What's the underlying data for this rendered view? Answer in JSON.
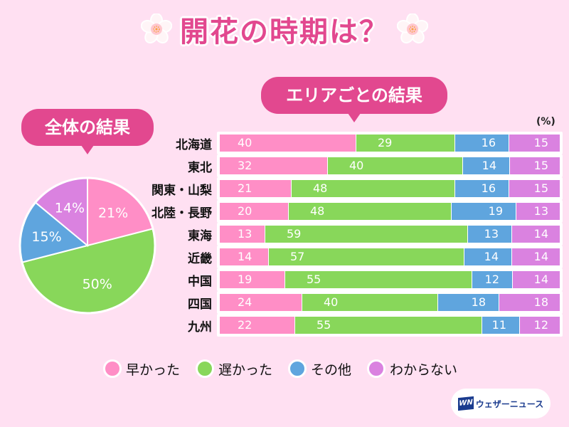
{
  "title": "開花の時期は？",
  "overall_label": "全体の結果",
  "area_label": "エリアごとの結果",
  "unit": "(%)",
  "colors": {
    "background": "#FFE0F2",
    "accent": "#E2488F",
    "early": "#FF8EC6",
    "late": "#88D75A",
    "other": "#5FA5DE",
    "unknown": "#DA82E0"
  },
  "legend": [
    {
      "label": "早かった",
      "color": "#FF8EC6"
    },
    {
      "label": "遅かった",
      "color": "#88D75A"
    },
    {
      "label": "その他",
      "color": "#5FA5DE"
    },
    {
      "label": "わからない",
      "color": "#DA82E0"
    }
  ],
  "logo": {
    "mark": "WN",
    "text": "ウェザーニュース"
  },
  "chart_data": [
    {
      "type": "pie",
      "title": "全体の結果",
      "categories": [
        "早かった",
        "遅かった",
        "その他",
        "わからない"
      ],
      "values": [
        21,
        50,
        15,
        14
      ],
      "labels": [
        "21%",
        "50%",
        "15%",
        "14%"
      ],
      "colors": [
        "#FF8EC6",
        "#88D75A",
        "#5FA5DE",
        "#DA82E0"
      ]
    },
    {
      "type": "bar",
      "stacked": true,
      "orientation": "horizontal",
      "title": "エリアごとの結果",
      "unit": "(%)",
      "categories": [
        "北海道",
        "東北",
        "関東・山梨",
        "北陸・長野",
        "東海",
        "近畿",
        "中国",
        "四国",
        "九州"
      ],
      "series": [
        {
          "name": "早かった",
          "color": "#FF8EC6",
          "values": [
            40,
            32,
            21,
            20,
            13,
            14,
            19,
            24,
            22
          ]
        },
        {
          "name": "遅かった",
          "color": "#88D75A",
          "values": [
            29,
            40,
            48,
            48,
            59,
            57,
            55,
            40,
            55
          ]
        },
        {
          "name": "その他",
          "color": "#5FA5DE",
          "values": [
            16,
            14,
            16,
            19,
            13,
            14,
            12,
            18,
            11
          ]
        },
        {
          "name": "わからない",
          "color": "#DA82E0",
          "values": [
            15,
            15,
            15,
            13,
            14,
            14,
            14,
            18,
            12
          ]
        }
      ],
      "xlim": [
        0,
        100
      ]
    }
  ]
}
